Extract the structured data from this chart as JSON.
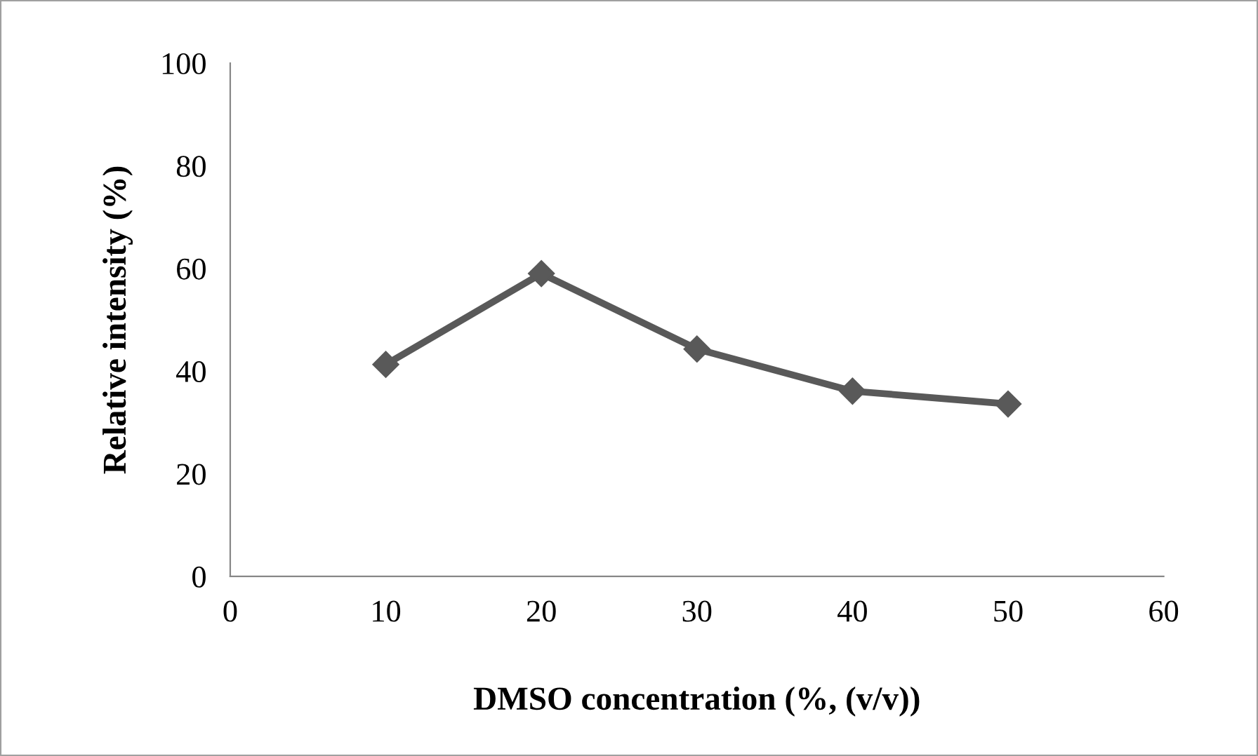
{
  "chart_data": {
    "type": "line",
    "xlabel": "DMSO concentration (%, (v/v))",
    "ylabel": "Relative intensity (%)",
    "x": [
      10,
      20,
      30,
      40,
      50
    ],
    "series": [
      {
        "color": "#595959",
        "values": [
          41.3,
          59.0,
          44.3,
          36.1,
          33.6
        ]
      }
    ],
    "xlim": [
      0,
      60
    ],
    "xticks": [
      0,
      10,
      20,
      30,
      40,
      50,
      60
    ],
    "ylim": [
      0,
      100
    ],
    "yticks": [
      0,
      20,
      40,
      60,
      80,
      100
    ],
    "marker": "diamond",
    "line_style": "solid",
    "grid": false,
    "legend": false
  }
}
